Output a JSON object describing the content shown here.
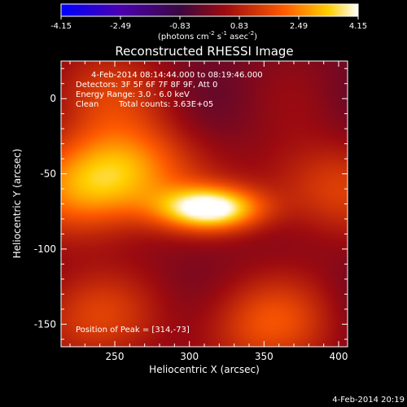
{
  "colorbar": {
    "ticks": [
      "-4.15",
      "-2.49",
      "-0.83",
      "0.83",
      "2.49",
      "4.15"
    ],
    "tick_values": [
      -4.15,
      -2.49,
      -0.83,
      0.83,
      2.49,
      4.15
    ],
    "units": "(photons cm",
    "units_sup1": "-2",
    "units_mid": " s",
    "units_sup2": "-1",
    "units_end": " asec",
    "units_sup3": "-2",
    "units_close": ")",
    "colors": [
      "#0000ff",
      "#4b00b0",
      "#3a0840",
      "#9b0a10",
      "#ff5a00",
      "#ffd000",
      "#ffffff"
    ]
  },
  "chart_data": {
    "type": "heatmap",
    "title": "Reconstructed RHESSI Image",
    "annotations": {
      "time": "4-Feb-2014 08:14:44.000 to 08:19:46.000",
      "detectors": "Detectors: 3F 5F 6F 7F 8F 9F, Att 0",
      "energy": "Energy Range: 3.0 - 6.0 keV",
      "clean": "Clean",
      "counts": "Total counts: 3.63E+05",
      "peak": "Position of Peak = [314,-73]"
    },
    "xlabel": "Heliocentric X (arcsec)",
    "ylabel": "Heliocentric Y (arcsec)",
    "xlim": [
      214,
      406
    ],
    "ylim": [
      -165,
      25
    ],
    "xticks": [
      250,
      300,
      350,
      400
    ],
    "yticks": [
      0,
      -50,
      -100,
      -150
    ],
    "peak_position": [
      314,
      -73
    ],
    "sources": [
      {
        "x": 314,
        "y": -73,
        "intensity": 4.15
      },
      {
        "x": 235,
        "y": -60,
        "intensity": 2.3
      },
      {
        "x": 260,
        "y": -45,
        "intensity": 1.9
      },
      {
        "x": 350,
        "y": -150,
        "intensity": 1.7
      },
      {
        "x": 230,
        "y": -145,
        "intensity": 1.4
      },
      {
        "x": 390,
        "y": -60,
        "intensity": 1.5
      },
      {
        "x": 240,
        "y": 5,
        "intensity": 1.1
      }
    ]
  },
  "footer": {
    "timestamp": "4-Feb-2014 20:19"
  }
}
